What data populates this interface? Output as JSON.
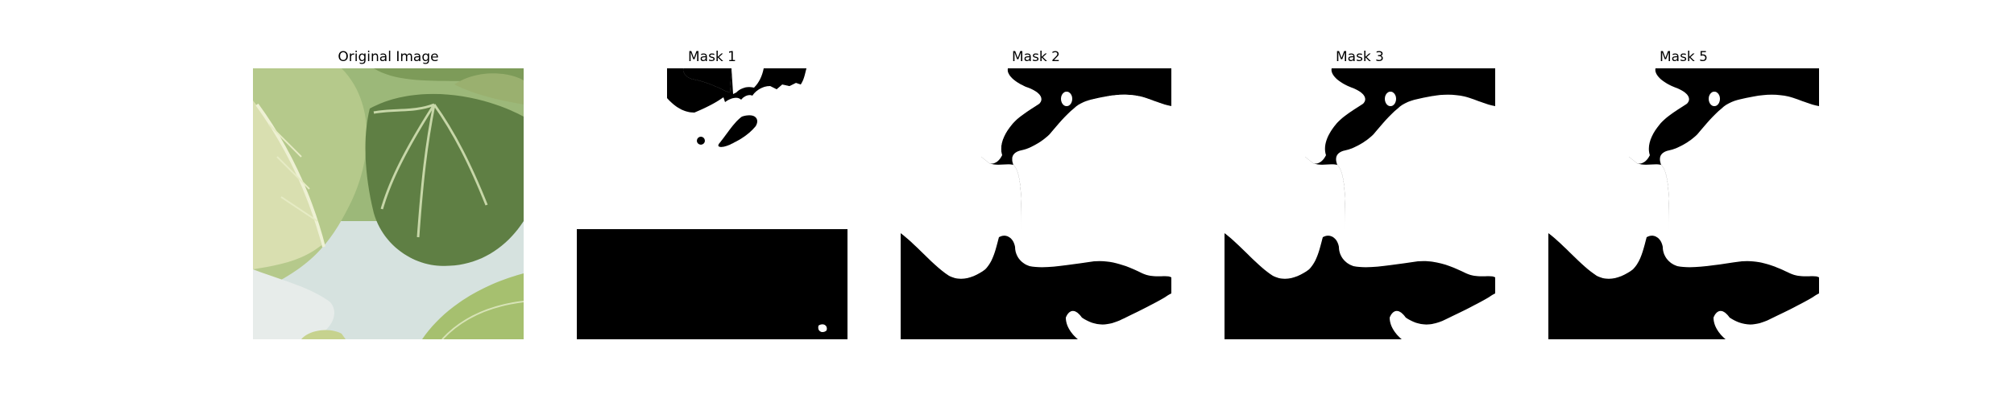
{
  "figure": {
    "panels": [
      {
        "title": "Original Image"
      },
      {
        "title": "Mask 1"
      },
      {
        "title": "Mask 2"
      },
      {
        "title": "Mask 3"
      },
      {
        "title": "Mask 5"
      }
    ]
  },
  "colors": {
    "mask_foreground": "#ffffff",
    "mask_background": "#000000",
    "leaf_light": "#c9d89e",
    "leaf_mid": "#8fae61",
    "leaf_dark": "#5d7b43",
    "leaf_shadow": "#3f5a31",
    "backdrop": "#d6e2df"
  }
}
